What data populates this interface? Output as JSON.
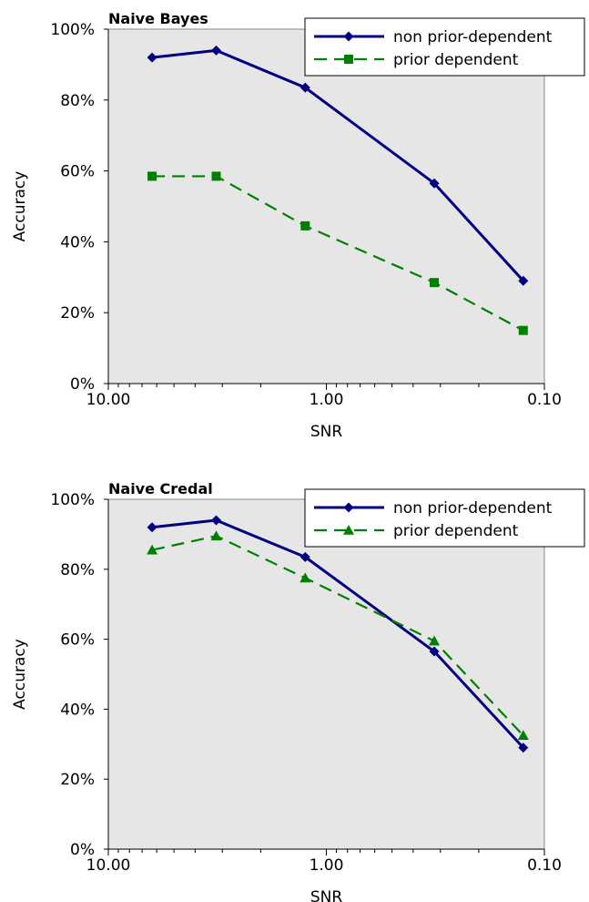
{
  "chart_data": [
    {
      "type": "line",
      "title": "Naive Bayes",
      "xlabel": "SNR",
      "ylabel": "Accuracy",
      "x_scale": "log",
      "x_reversed": true,
      "xlim": [
        10.0,
        0.1
      ],
      "ylim": [
        0,
        100
      ],
      "x_tick_labels": [
        "10.00",
        "1.00",
        "0.10"
      ],
      "y_tick_labels": [
        "0%",
        "20%",
        "40%",
        "60%",
        "80%",
        "100%"
      ],
      "legend_position": "top-right",
      "grid": false,
      "background": "#e6e6e6",
      "series": [
        {
          "name": "non prior-dependent",
          "color": "#000080",
          "marker": "diamond",
          "line_style": "solid",
          "x": [
            6.3,
            3.2,
            1.25,
            0.32,
            0.125
          ],
          "y": [
            92,
            94,
            83.5,
            56.5,
            29
          ]
        },
        {
          "name": "prior dependent",
          "color": "#008000",
          "marker": "square",
          "line_style": "dashed",
          "x": [
            6.3,
            3.2,
            1.25,
            0.32,
            0.125
          ],
          "y": [
            58.5,
            58.5,
            44.5,
            28.5,
            15
          ]
        }
      ]
    },
    {
      "type": "line",
      "title": "Naive Credal",
      "xlabel": "SNR",
      "ylabel": "Accuracy",
      "x_scale": "log",
      "x_reversed": true,
      "xlim": [
        10.0,
        0.1
      ],
      "ylim": [
        0,
        100
      ],
      "x_tick_labels": [
        "10.00",
        "1.00",
        "0.10"
      ],
      "y_tick_labels": [
        "0%",
        "20%",
        "40%",
        "60%",
        "80%",
        "100%"
      ],
      "legend_position": "top-right",
      "grid": false,
      "background": "#e6e6e6",
      "series": [
        {
          "name": "non prior-dependent",
          "color": "#000080",
          "marker": "diamond",
          "line_style": "solid",
          "x": [
            6.3,
            3.2,
            1.25,
            0.32,
            0.125
          ],
          "y": [
            92,
            94,
            83.5,
            56.5,
            29
          ]
        },
        {
          "name": "prior dependent",
          "color": "#008000",
          "marker": "triangle",
          "line_style": "dashed",
          "x": [
            6.3,
            3.2,
            1.25,
            0.32,
            0.125
          ],
          "y": [
            85.5,
            89.5,
            77.5,
            59.5,
            32.5
          ]
        }
      ]
    }
  ]
}
